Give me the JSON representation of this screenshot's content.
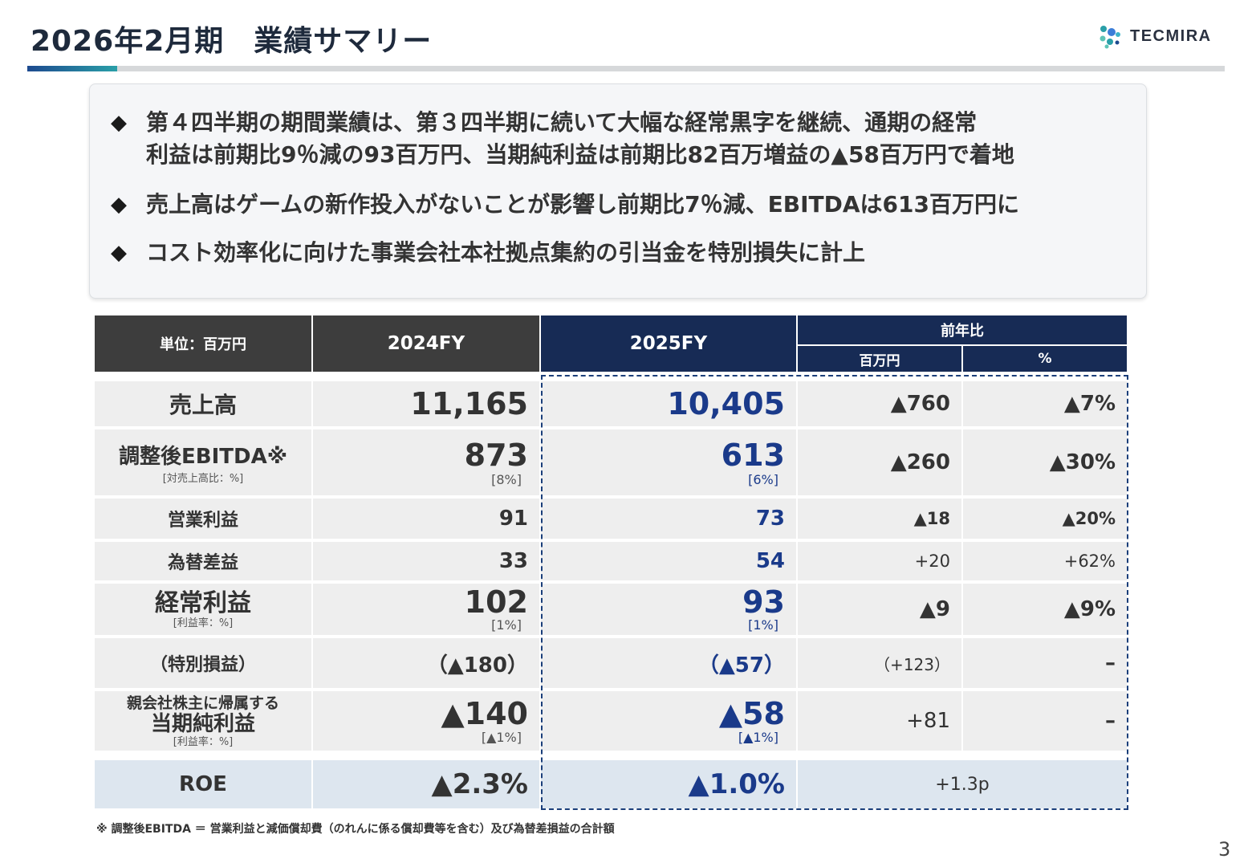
{
  "page": {
    "title": "2026年2月期　業績サマリー",
    "page_number": "3",
    "footnote": "※ 調整後EBITDA ＝ 営業利益と減価償却費（のれんに係る償却費等を含む）及び為替差損益の合計額"
  },
  "brand": {
    "name": "TECMIRA",
    "accent_colors": [
      "#1d4a8f",
      "#2a9fa8"
    ]
  },
  "summary": {
    "bullet_icon": "diamond",
    "bullets": [
      "第４四半期の期間業績は、第３四半期に続いて大幅な経常黒字を継続、通期の経常\n利益は前期比9％減の93百万円、当期純利益は前期比82百万増益の▲58百万円で着地",
      "売上高はゲームの新作投入がないことが影響し前期比7％減、EBITDAは613百万円に",
      "コスト効率化に向けた事業会社本社拠点集約の引当金を特別損失に計上"
    ]
  },
  "table": {
    "colors": {
      "header_dark": "#3d3d3d",
      "header_navy": "#172b55",
      "row_bg": "#eeeeee",
      "roe_bg": "#dde6ef",
      "highlight_text": "#1a3a8a"
    },
    "headers": {
      "unit": "単位：百万円",
      "fy_prev": "2024FY",
      "fy_curr": "2025FY",
      "yoy": "前年比",
      "yoy_amount": "百万円",
      "yoy_pct": "%"
    },
    "rows": [
      {
        "label": "売上高",
        "sub_label": "",
        "prev": "11,165",
        "prev_sub": "",
        "curr": "10,405",
        "curr_sub": "",
        "diff": "▲760",
        "pct": "▲7%"
      },
      {
        "label": "調整後EBITDA※",
        "sub_label": "[対売上高比：%]",
        "prev": "873",
        "prev_sub": "[8%]",
        "curr": "613",
        "curr_sub": "[6%]",
        "diff": "▲260",
        "pct": "▲30%"
      },
      {
        "label": "営業利益",
        "sub_label": "",
        "prev": "91",
        "prev_sub": "",
        "curr": "73",
        "curr_sub": "",
        "diff": "▲18",
        "pct": "▲20%"
      },
      {
        "label": "為替差益",
        "sub_label": "",
        "prev": "33",
        "prev_sub": "",
        "curr": "54",
        "curr_sub": "",
        "diff": "+20",
        "pct": "+62%"
      },
      {
        "label": "経常利益",
        "sub_label": "[利益率：%]",
        "prev": "102",
        "prev_sub": "[1%]",
        "curr": "93",
        "curr_sub": "[1%]",
        "diff": "▲9",
        "pct": "▲9%"
      },
      {
        "label": "（特別損益）",
        "sub_label": "",
        "prev": "（▲180）",
        "prev_sub": "",
        "curr": "（▲57）",
        "curr_sub": "",
        "diff": "（+123）",
        "pct": "–"
      },
      {
        "label_pre": "親会社株主に帰属する",
        "label": "当期純利益",
        "sub_label": "[利益率：%]",
        "prev": "▲140",
        "prev_sub": "[▲1%]",
        "curr": "▲58",
        "curr_sub": "[▲1%]",
        "diff": "+81",
        "pct": "–"
      },
      {
        "label": "ROE",
        "sub_label": "",
        "prev": "▲2.3%",
        "prev_sub": "",
        "curr": "▲1.0%",
        "curr_sub": "",
        "diff": "+1.3p",
        "pct": ""
      }
    ]
  }
}
